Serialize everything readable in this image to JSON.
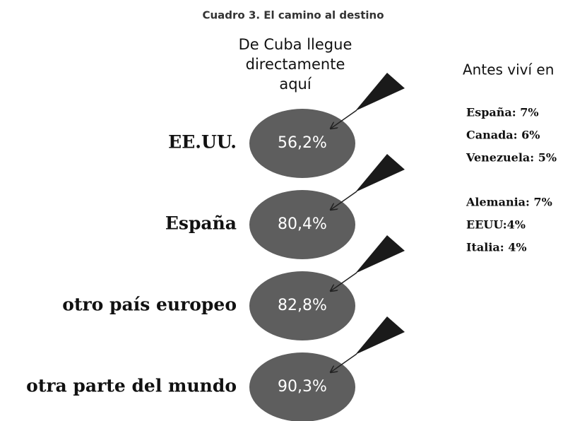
{
  "title": "Cuadro 3. El camino al destino",
  "header": {
    "lines": [
      "De Cuba llegue",
      "directamente",
      "aquí"
    ]
  },
  "rows": [
    {
      "label": "EE.UU.",
      "value": "56,2%"
    },
    {
      "label": "España",
      "value": "80,4%"
    },
    {
      "label": "otro país europeo",
      "value": "82,8%"
    },
    {
      "label": "otra parte del mundo",
      "value": "90,3%"
    }
  ],
  "side": {
    "title": "Antes viví en",
    "groups": [
      [
        "España: 7%",
        "Canada: 6%",
        "Venezuela: 5%"
      ],
      [
        "Alemania: 7%",
        "EEUU:4%",
        "Italia: 4%"
      ]
    ]
  }
}
